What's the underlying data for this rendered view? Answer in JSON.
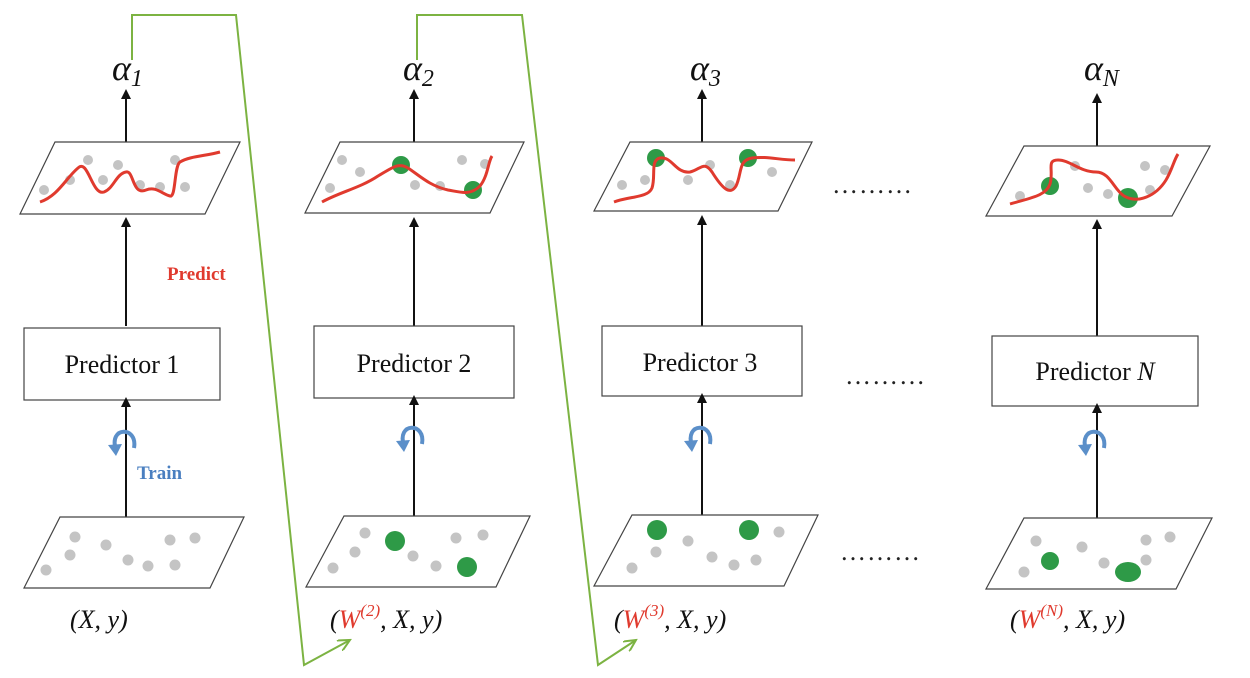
{
  "colors": {
    "curve": "#e03a2e",
    "highlight_point": "#2e9a47",
    "plain_point": "#c4c4c4",
    "train_arrow": "#5b8fc9",
    "weight_link": "#7cb342",
    "frame": "#333333"
  },
  "annotations": {
    "predict": "Predict",
    "train": "Train"
  },
  "ellipsis": "………",
  "stages": [
    {
      "alpha_symbol": "α",
      "alpha_sub": "1",
      "predictor_label": "Predictor  1",
      "predictor_name": "Predictor  ",
      "predictor_index": "1",
      "caption_weight": "",
      "caption_weight_sup": "",
      "caption_rest": "(X, y)"
    },
    {
      "alpha_symbol": "α",
      "alpha_sub": "2",
      "predictor_name": "Predictor  ",
      "predictor_index": "2",
      "caption_open": "(",
      "caption_weight": "W",
      "caption_weight_sup": "(2)",
      "caption_rest": ",  X, y)"
    },
    {
      "alpha_symbol": "α",
      "alpha_sub": "3",
      "predictor_name": "Predictor  ",
      "predictor_index": "3",
      "caption_open": "(",
      "caption_weight": "W",
      "caption_weight_sup": "(3)",
      "caption_rest": ",  X, y)"
    },
    {
      "alpha_symbol": "α",
      "alpha_sub": "N",
      "predictor_name": "Predictor  ",
      "predictor_index": "N",
      "caption_open": "(",
      "caption_weight": "W",
      "caption_weight_sup": "(N)",
      "caption_rest": ",  X, y)"
    }
  ]
}
